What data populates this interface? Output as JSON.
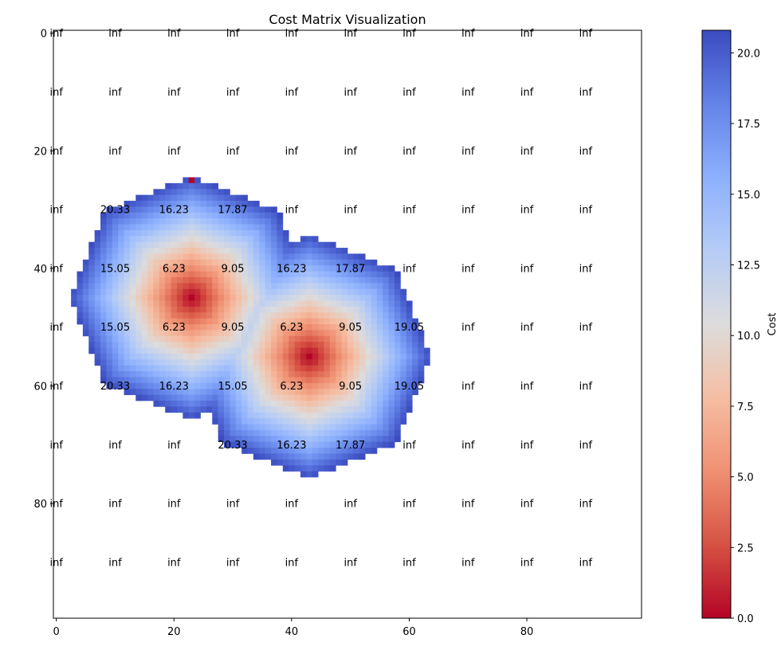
{
  "chart_data": {
    "type": "heatmap",
    "title": "Cost Matrix Visualization",
    "xlabel": "",
    "ylabel": "",
    "grid_shape": [
      100,
      100
    ],
    "xlim": [
      0,
      100
    ],
    "ylim": [
      100,
      0
    ],
    "x_ticks": [
      0,
      20,
      40,
      60,
      80
    ],
    "y_ticks": [
      0,
      20,
      40,
      60,
      80
    ],
    "colormap": "coolwarm_r",
    "colormap_low_color": "#b40426",
    "colormap_mid_color": "#dddcdc",
    "colormap_high_color": "#3b4cc0",
    "color_range": [
      0,
      20.8
    ],
    "infinite_value_color": "#ffffff",
    "goal_cell": [
      23,
      25
    ],
    "goal_cell_value": 0,
    "sources": [
      {
        "x": 23,
        "y": 45,
        "value": 0
      },
      {
        "x": 43,
        "y": 55,
        "value": 0
      }
    ],
    "colorbar": {
      "label": "Cost",
      "ticks": [
        "0.0",
        "2.5",
        "5.0",
        "7.5",
        "10.0",
        "12.5",
        "15.0",
        "17.5",
        "20.0"
      ],
      "tick_values": [
        0,
        2.5,
        5,
        7.5,
        10,
        12.5,
        15,
        17.5,
        20
      ],
      "range": [
        0,
        20.8
      ]
    },
    "annotation_columns": [
      0,
      10,
      20,
      30,
      40,
      50,
      60,
      70,
      80,
      90
    ],
    "annotation_rows": [
      0,
      10,
      20,
      30,
      40,
      50,
      60,
      70,
      80,
      90
    ],
    "annotations": [
      [
        "inf",
        "inf",
        "inf",
        "inf",
        "inf",
        "inf",
        "inf",
        "inf",
        "inf",
        "inf"
      ],
      [
        "inf",
        "inf",
        "inf",
        "inf",
        "inf",
        "inf",
        "inf",
        "inf",
        "inf",
        "inf"
      ],
      [
        "inf",
        "inf",
        "inf",
        "inf",
        "inf",
        "inf",
        "inf",
        "inf",
        "inf",
        "inf"
      ],
      [
        "inf",
        "20.33",
        "16.23",
        "17.87",
        "inf",
        "inf",
        "inf",
        "inf",
        "inf",
        "inf"
      ],
      [
        "inf",
        "15.05",
        "6.23",
        "9.05",
        "16.23",
        "17.87",
        "inf",
        "inf",
        "inf",
        "inf"
      ],
      [
        "inf",
        "15.05",
        "6.23",
        "9.05",
        "6.23",
        "9.05",
        "19.05",
        "inf",
        "inf",
        "inf"
      ],
      [
        "inf",
        "20.33",
        "16.23",
        "15.05",
        "6.23",
        "9.05",
        "19.05",
        "inf",
        "inf",
        "inf"
      ],
      [
        "inf",
        "inf",
        "inf",
        "20.33",
        "16.23",
        "17.87",
        "inf",
        "inf",
        "inf",
        "inf"
      ],
      [
        "inf",
        "inf",
        "inf",
        "inf",
        "inf",
        "inf",
        "inf",
        "inf",
        "inf",
        "inf"
      ],
      [
        "inf",
        "inf",
        "inf",
        "inf",
        "inf",
        "inf",
        "inf",
        "inf",
        "inf",
        "inf"
      ]
    ]
  }
}
